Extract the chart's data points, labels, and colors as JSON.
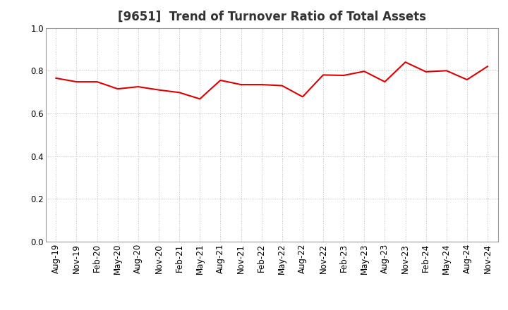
{
  "title": "[9651]  Trend of Turnover Ratio of Total Assets",
  "ylim": [
    0.0,
    1.0
  ],
  "yticks": [
    0.0,
    0.2,
    0.4,
    0.6,
    0.8,
    1.0
  ],
  "line_color": "#dd0000",
  "line_width": 1.5,
  "background_color": "#ffffff",
  "grid_color": "#bbbbbb",
  "labels": [
    "Aug-19",
    "Nov-19",
    "Feb-20",
    "May-20",
    "Aug-20",
    "Nov-20",
    "Feb-21",
    "May-21",
    "Aug-21",
    "Nov-21",
    "Feb-22",
    "May-22",
    "Aug-22",
    "Nov-22",
    "Feb-23",
    "May-23",
    "Aug-23",
    "Nov-23",
    "Feb-24",
    "May-24",
    "Aug-24",
    "Nov-24"
  ],
  "values": [
    0.765,
    0.748,
    0.748,
    0.715,
    0.725,
    0.71,
    0.698,
    0.668,
    0.755,
    0.735,
    0.735,
    0.73,
    0.678,
    0.78,
    0.778,
    0.797,
    0.748,
    0.84,
    0.795,
    0.8,
    0.758,
    0.82
  ],
  "title_fontsize": 12,
  "tick_fontsize": 8.5,
  "title_color": "#333333"
}
